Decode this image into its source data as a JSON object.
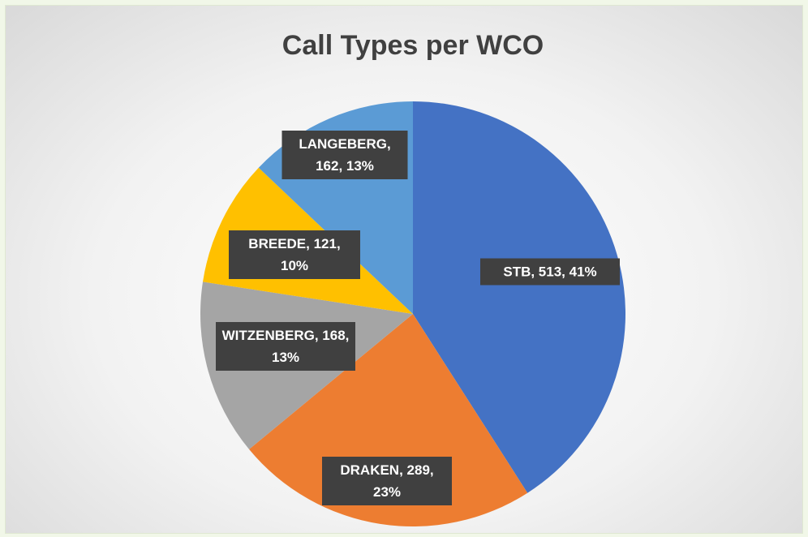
{
  "chart_data": {
    "type": "pie",
    "title": "Call Types per WCO",
    "categories": [
      "STB",
      "DRAKEN",
      "WITZENBERG",
      "BREEDE",
      "LANGEBERG"
    ],
    "values": [
      513,
      289,
      168,
      121,
      162
    ],
    "value_labels": [
      "STB, 513, 41%",
      "DRAKEN, 289, 23%",
      "WITZENBERG, 168, 13%",
      "BREEDE, 121, 10%",
      "LANGEBERG, 162, 13%"
    ],
    "colors": [
      "#4472c4",
      "#ed7d31",
      "#a5a5a5",
      "#ffc000",
      "#5b9bd5"
    ]
  }
}
